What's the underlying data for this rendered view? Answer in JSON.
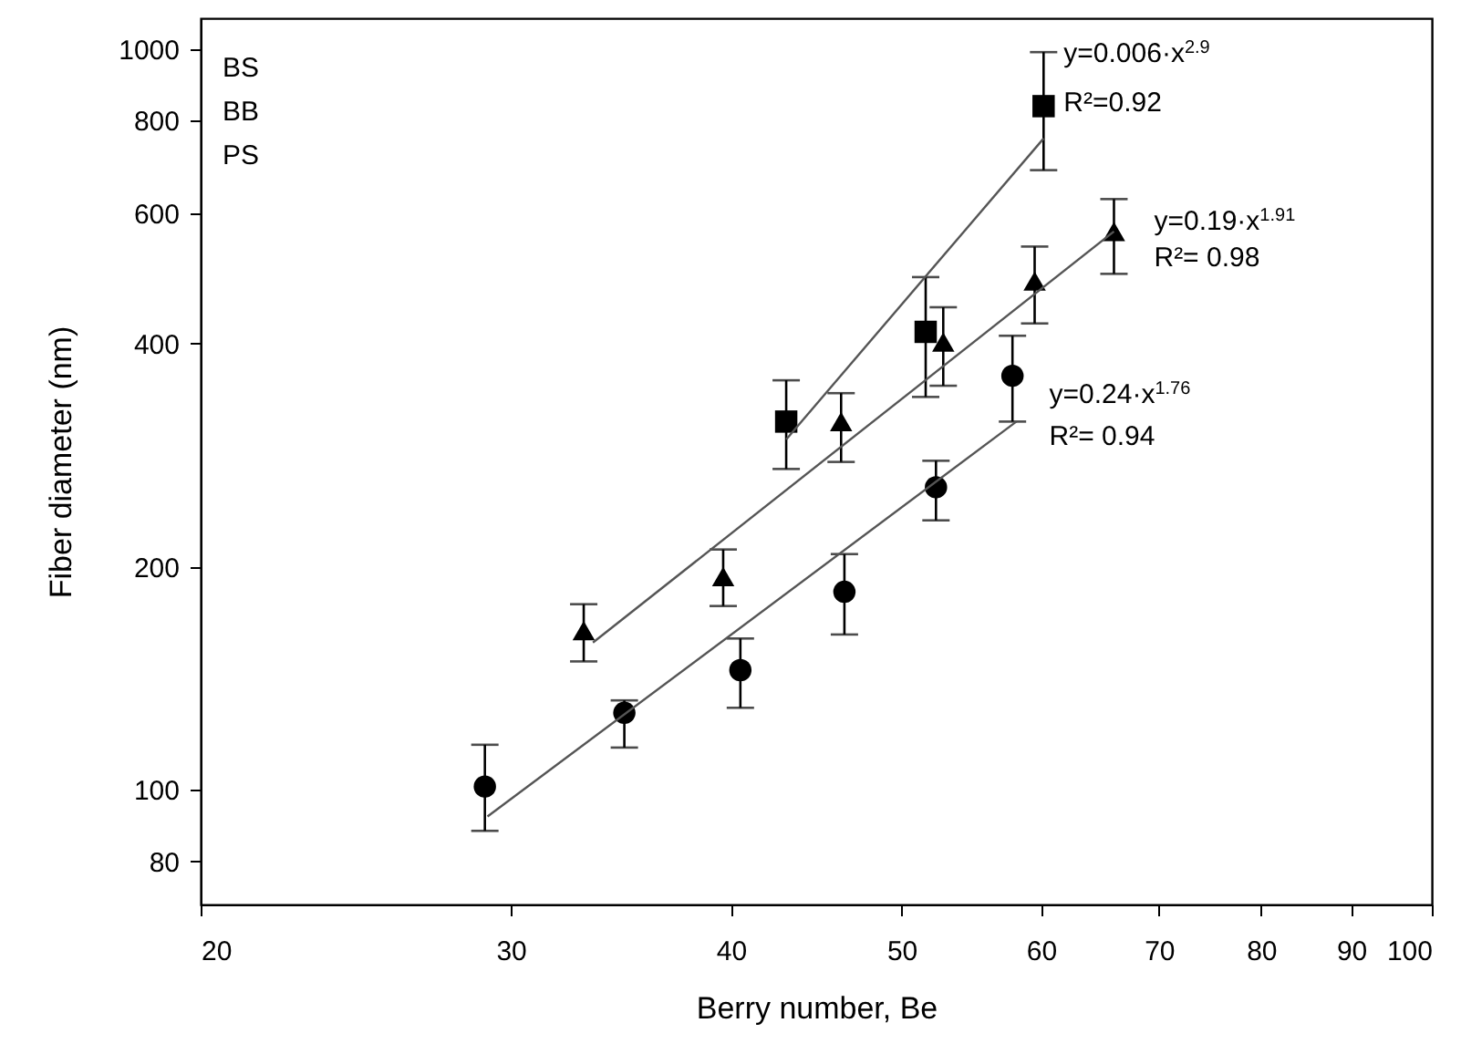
{
  "chart_data": {
    "type": "scatter",
    "xlabel": "Berry number, Be",
    "ylabel": "Fiber diameter (nm)",
    "log": "xy",
    "xlim": [
      20,
      100
    ],
    "ylim": [
      70,
      1100
    ],
    "xticks": [
      20,
      30,
      40,
      50,
      60,
      70,
      80,
      90,
      100
    ],
    "yticks": [
      80,
      100,
      200,
      400,
      600,
      800,
      1000
    ],
    "grid": false,
    "series": [
      {
        "type": "scatter",
        "marker": "square",
        "color": "#000000",
        "x": [
          43.0,
          51.6,
          60.2
        ],
        "values": [
          314,
          415,
          837
        ],
        "errors": [
          [
            271,
            357
          ],
          [
            339,
            492
          ],
          [
            686,
            990
          ]
        ]
      },
      {
        "type": "scatter",
        "marker": "triangle",
        "color": "#000000",
        "x": [
          33.0,
          39.6,
          46.2,
          52.8,
          59.5,
          66.0
        ],
        "values": [
          164,
          194,
          314,
          402,
          486,
          567
        ],
        "errors": [
          [
            149,
            178
          ],
          [
            177,
            211
          ],
          [
            277,
            343
          ],
          [
            351,
            448
          ],
          [
            426,
            541
          ],
          [
            497,
            627
          ]
        ]
      },
      {
        "type": "scatter",
        "marker": "circle",
        "color": "#000000",
        "x": [
          29.0,
          34.8,
          40.5,
          46.4,
          52.3,
          57.8
        ],
        "values": [
          101,
          127,
          145,
          185,
          256,
          362
        ],
        "errors": [
          [
            88,
            115
          ],
          [
            114,
            132
          ],
          [
            129,
            160
          ],
          [
            162,
            208
          ],
          [
            231,
            278
          ],
          [
            314,
            410
          ]
        ]
      },
      {
        "type": "line",
        "color": "#555555",
        "x": [
          43.0,
          60.2
        ],
        "values": [
          297,
          757
        ]
      },
      {
        "type": "line",
        "color": "#555555",
        "x": [
          33.4,
          66.0
        ],
        "values": [
          158,
          567
        ]
      },
      {
        "type": "line",
        "color": "#555555",
        "x": [
          29.1,
          58.1
        ],
        "values": [
          92,
          314
        ]
      }
    ],
    "annotations": [
      "BS",
      "BB",
      "PS",
      "y=0.006·x$^{2.9}$",
      "R²=0.92",
      "y=0.19·x$^{1.91}$",
      "R²= 0.98",
      "y=0.24·x$^{1.76}$",
      "R²= 0.94"
    ]
  }
}
